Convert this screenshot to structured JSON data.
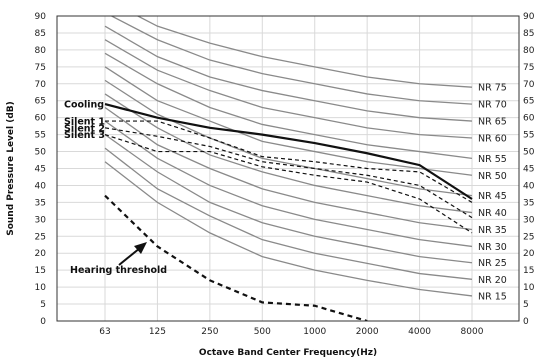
{
  "chart_data": {
    "type": "line",
    "title": "",
    "xlabel": "Octave Band Center Frequency(Hz)",
    "ylabel": "Sound Pressure Level (dB)",
    "x_categories": [
      "63",
      "125",
      "250",
      "500",
      "1000",
      "2000",
      "4000",
      "8000"
    ],
    "ylim": [
      0,
      90
    ],
    "yticks": [
      0,
      5,
      10,
      15,
      20,
      25,
      30,
      35,
      40,
      45,
      50,
      55,
      60,
      65,
      70,
      75,
      80,
      85,
      90
    ],
    "grid": true,
    "nr_curves": [
      {
        "name": "NR 15",
        "values": [
          47,
          35,
          26,
          19,
          15,
          12,
          9.3,
          7.4
        ]
      },
      {
        "name": "NR 20",
        "values": [
          51,
          39,
          31,
          24,
          20,
          17,
          14,
          12.3
        ]
      },
      {
        "name": "NR 25",
        "values": [
          55,
          44,
          35,
          29,
          25,
          22,
          19,
          17.2
        ]
      },
      {
        "name": "NR 30",
        "values": [
          59,
          48,
          40,
          34,
          30,
          27,
          24,
          22
        ]
      },
      {
        "name": "NR 35",
        "values": [
          63,
          52,
          45,
          39,
          35,
          32,
          29,
          27
        ]
      },
      {
        "name": "NR 40",
        "values": [
          67,
          57,
          49,
          44,
          40,
          37,
          34,
          32
        ]
      },
      {
        "name": "NR 45",
        "values": [
          71,
          61,
          54,
          48,
          45,
          42,
          39,
          37
        ]
      },
      {
        "name": "NR 50",
        "values": [
          75,
          65,
          59,
          53,
          50,
          47,
          45,
          43
        ]
      },
      {
        "name": "NR 55",
        "values": [
          79,
          70,
          63,
          58,
          55,
          52,
          50,
          48
        ]
      },
      {
        "name": "NR 60",
        "values": [
          83,
          74,
          68,
          63,
          60,
          57,
          55,
          54
        ]
      },
      {
        "name": "NR 65",
        "values": [
          87,
          78,
          72,
          68,
          65,
          62,
          60,
          59
        ]
      },
      {
        "name": "NR 70",
        "values": [
          91,
          83,
          77,
          73,
          70,
          67,
          65,
          64
        ]
      },
      {
        "name": "NR 75",
        "values": [
          95,
          87,
          82,
          78,
          75,
          72,
          70,
          69
        ]
      }
    ],
    "series": [
      {
        "name": "Cooling",
        "style": "solid-bold",
        "values": [
          64,
          60,
          57,
          55,
          52.5,
          49.5,
          46,
          36
        ]
      },
      {
        "name": "Silent 1",
        "style": "dashed",
        "values": [
          59,
          59,
          54,
          48.5,
          47,
          45,
          44,
          35
        ]
      },
      {
        "name": "Silent 2",
        "style": "dashed",
        "values": [
          57,
          54.5,
          51.5,
          47,
          45,
          43,
          40,
          30.5
        ]
      },
      {
        "name": "Silent 3",
        "style": "dashed",
        "values": [
          55,
          50,
          50,
          45.5,
          43,
          41,
          36,
          26
        ]
      },
      {
        "name": "Hearing threshold",
        "style": "dashed-bold",
        "values": [
          37,
          22,
          12,
          5.5,
          4.5,
          0
        ]
      }
    ],
    "annotation": "Hearing threshold",
    "colors": {
      "nr": "#8a8a8a",
      "series": "#111111",
      "grid": "#d9d9d9",
      "frame": "#333333"
    }
  }
}
